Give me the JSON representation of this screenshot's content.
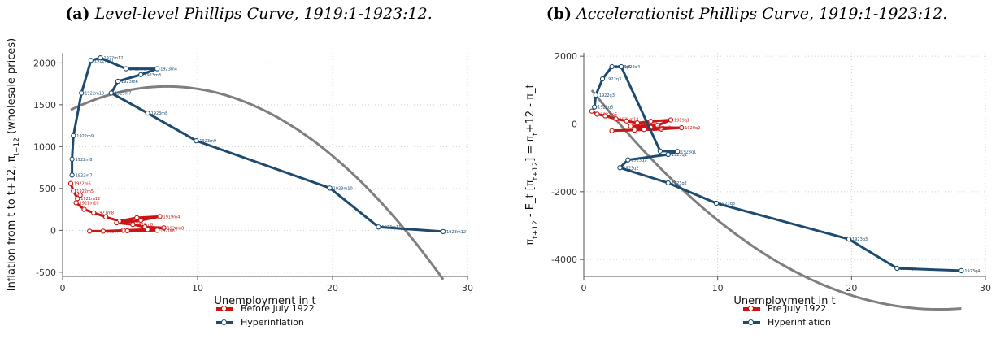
{
  "chart_data": [
    {
      "type": "line",
      "panel_label": "(a)",
      "title": "Level-level Phillips Curve, 1919:1-1923:12.",
      "xlabel": "Unemployment in t",
      "ylabel": "Inflation from t to t+12, π_t+12   (wholesale prices)",
      "xlim": [
        0,
        30
      ],
      "ylim": [
        -550,
        2120
      ],
      "xticks": [
        "0",
        "10",
        "20",
        "30"
      ],
      "yticks": [
        "-500",
        "0",
        "500",
        "1000",
        "1500",
        "2000"
      ],
      "grid": "dotted",
      "legend_position": "bottom",
      "series": [
        {
          "name": "Before July 1922",
          "color": "#cc1414",
          "points": [
            {
              "x": 0.6,
              "y": 560,
              "label": "1922m6"
            },
            {
              "x": 0.8,
              "y": 470,
              "label": "1922m5"
            },
            {
              "x": 1.1,
              "y": 380,
              "label": "1921m12"
            },
            {
              "x": 1.3,
              "y": 420,
              "label": ""
            },
            {
              "x": 1.0,
              "y": 330,
              "label": "1921m10"
            },
            {
              "x": 1.6,
              "y": 250,
              "label": ""
            },
            {
              "x": 2.3,
              "y": 210,
              "label": "1921m8"
            },
            {
              "x": 3.2,
              "y": 160,
              "label": ""
            },
            {
              "x": 4.2,
              "y": 110,
              "label": "1919m9"
            },
            {
              "x": 5.5,
              "y": 150,
              "label": ""
            },
            {
              "x": 7.2,
              "y": 165,
              "label": "1919m4"
            },
            {
              "x": 5.8,
              "y": 120,
              "label": ""
            },
            {
              "x": 4.0,
              "y": 90,
              "label": ""
            },
            {
              "x": 5.2,
              "y": 70,
              "label": "1919m8"
            },
            {
              "x": 6.1,
              "y": 40,
              "label": ""
            },
            {
              "x": 7.5,
              "y": 30,
              "label": "1920m8"
            },
            {
              "x": 6.3,
              "y": 10,
              "label": ""
            },
            {
              "x": 4.5,
              "y": 0,
              "label": ""
            },
            {
              "x": 3.0,
              "y": -10,
              "label": "1920m4"
            },
            {
              "x": 2.0,
              "y": -10,
              "label": ""
            },
            {
              "x": 4.8,
              "y": -5,
              "label": ""
            },
            {
              "x": 7.0,
              "y": 0,
              "label": "1920m7"
            }
          ]
        },
        {
          "name": "Hyperinflation",
          "color": "#1e4a6e",
          "points": [
            {
              "x": 0.7,
              "y": 660,
              "label": "1922m7"
            },
            {
              "x": 0.7,
              "y": 850,
              "label": "1922m8"
            },
            {
              "x": 0.8,
              "y": 1130,
              "label": "1922m9"
            },
            {
              "x": 1.4,
              "y": 1640,
              "label": "1922m10"
            },
            {
              "x": 2.1,
              "y": 2030,
              "label": "1922m11"
            },
            {
              "x": 2.8,
              "y": 2060,
              "label": "1922m12"
            },
            {
              "x": 4.7,
              "y": 1930,
              "label": "1923m1"
            },
            {
              "x": 7.0,
              "y": 1930,
              "label": "1923m4"
            },
            {
              "x": 5.8,
              "y": 1860,
              "label": "1923m3"
            },
            {
              "x": 4.1,
              "y": 1780,
              "label": "1923m6"
            },
            {
              "x": 3.6,
              "y": 1640,
              "label": "1923m7"
            },
            {
              "x": 6.3,
              "y": 1400,
              "label": "1923m8"
            },
            {
              "x": 9.9,
              "y": 1070,
              "label": "1923m9"
            },
            {
              "x": 19.8,
              "y": 505,
              "label": "1923m10"
            },
            {
              "x": 23.4,
              "y": 40,
              "label": "1923m11"
            },
            {
              "x": 28.2,
              "y": -15,
              "label": "1923m12"
            }
          ]
        }
      ],
      "fit_curve": {
        "x_from": 0.6,
        "x_to": 28.2,
        "a": 1390,
        "b": 85,
        "c": -5.5
      }
    },
    {
      "type": "line",
      "panel_label": "(b)",
      "title": "Accelerationist Phillips Curve, 1919:1-1923:12.",
      "xlabel": "Unemployment in t",
      "ylabel": "π_t+12 - E_t [π_t+12] = π_t+12 - π_t",
      "xlim": [
        0,
        30
      ],
      "ylim": [
        -4500,
        2100
      ],
      "xticks": [
        "0",
        "10",
        "20",
        "30"
      ],
      "yticks": [
        "-4000",
        "-2000",
        "0",
        "2000"
      ],
      "grid": "dotted",
      "legend_position": "bottom",
      "series": [
        {
          "name": "Pre July 1922",
          "color": "#cc1414",
          "points": [
            {
              "x": 0.6,
              "y": 380,
              "label": ""
            },
            {
              "x": 1.0,
              "y": 290,
              "label": "1922m5"
            },
            {
              "x": 1.6,
              "y": 240,
              "label": ""
            },
            {
              "x": 2.4,
              "y": 150,
              "label": "1921m12"
            },
            {
              "x": 3.2,
              "y": 90,
              "label": ""
            },
            {
              "x": 4.0,
              "y": 30,
              "label": "1920m4"
            },
            {
              "x": 5.0,
              "y": 80,
              "label": ""
            },
            {
              "x": 6.5,
              "y": 120,
              "label": "1919q1"
            },
            {
              "x": 5.5,
              "y": -40,
              "label": ""
            },
            {
              "x": 3.5,
              "y": -60,
              "label": ""
            },
            {
              "x": 5.0,
              "y": -100,
              "label": "1920m2"
            },
            {
              "x": 7.3,
              "y": -110,
              "label": "1920q2"
            },
            {
              "x": 5.8,
              "y": -150,
              "label": ""
            },
            {
              "x": 3.8,
              "y": -180,
              "label": ""
            },
            {
              "x": 2.1,
              "y": -200,
              "label": ""
            },
            {
              "x": 4.5,
              "y": -160,
              "label": "1920m4"
            }
          ]
        },
        {
          "name": "Hyperinflation",
          "color": "#1e4a6e",
          "points": [
            {
              "x": 0.8,
              "y": 500,
              "label": "1922q3"
            },
            {
              "x": 0.9,
              "y": 850,
              "label": "1922q3"
            },
            {
              "x": 1.4,
              "y": 1330,
              "label": "1922q3"
            },
            {
              "x": 2.1,
              "y": 1690,
              "label": "1922q4"
            },
            {
              "x": 2.8,
              "y": 1690,
              "label": "1922q4"
            },
            {
              "x": 5.7,
              "y": -800,
              "label": ""
            },
            {
              "x": 7.0,
              "y": -810,
              "label": "1923q1"
            },
            {
              "x": 6.3,
              "y": -900,
              "label": "1923q1"
            },
            {
              "x": 3.3,
              "y": -1060,
              "label": "1923q2"
            },
            {
              "x": 2.7,
              "y": -1290,
              "label": "1923q2"
            },
            {
              "x": 6.3,
              "y": -1740,
              "label": "1923q2"
            },
            {
              "x": 9.9,
              "y": -2340,
              "label": "1923q3"
            },
            {
              "x": 19.8,
              "y": -3400,
              "label": "1923q3"
            },
            {
              "x": 23.4,
              "y": -4260,
              "label": "1923q4"
            },
            {
              "x": 28.2,
              "y": -4330,
              "label": "1923q4"
            }
          ]
        }
      ],
      "fit_curve": {
        "x_from": 0.6,
        "x_to": 28.2,
        "a": 1300,
        "b": -510,
        "c": 9.6
      }
    }
  ]
}
